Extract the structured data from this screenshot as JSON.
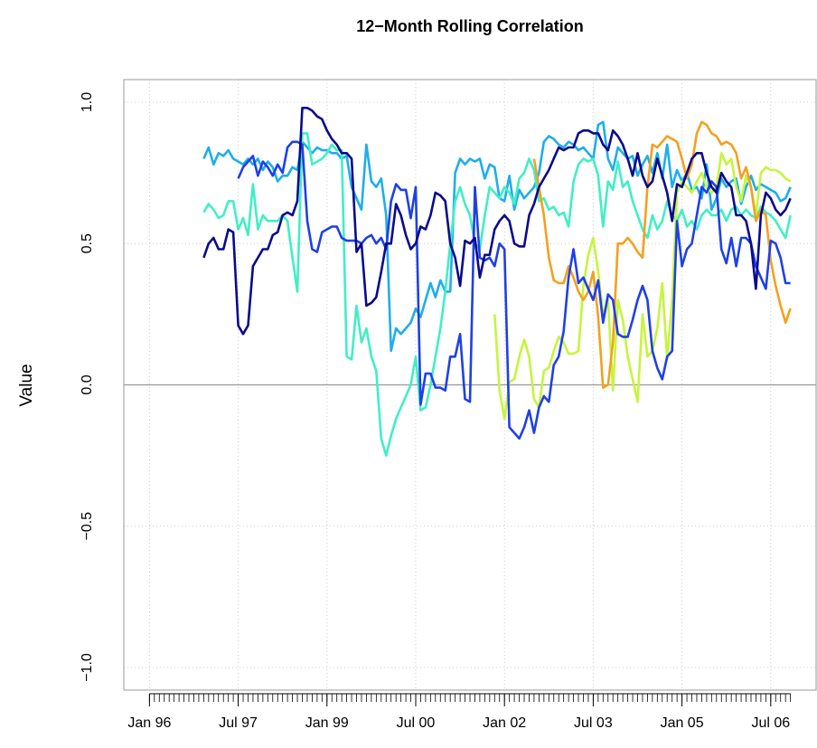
{
  "chart_data": {
    "type": "line",
    "title": "12−Month Rolling Correlation",
    "y_label": "Value",
    "x": [
      "Jan 96",
      "Feb 96",
      "Mar 96",
      "Apr 96",
      "May 96",
      "Jun 96",
      "Jul 96",
      "Aug 96",
      "Sep 96",
      "Oct 96",
      "Nov 96",
      "Dec 96",
      "Jan 97",
      "Feb 97",
      "Mar 97",
      "Apr 97",
      "May 97",
      "Jun 97",
      "Jul 97",
      "Aug 97",
      "Sep 97",
      "Oct 97",
      "Nov 97",
      "Dec 97",
      "Jan 98",
      "Feb 98",
      "Mar 98",
      "Apr 98",
      "May 98",
      "Jun 98",
      "Jul 98",
      "Aug 98",
      "Sep 98",
      "Oct 98",
      "Nov 98",
      "Dec 98",
      "Jan 99",
      "Feb 99",
      "Mar 99",
      "Apr 99",
      "May 99",
      "Jun 99",
      "Jul 99",
      "Aug 99",
      "Sep 99",
      "Oct 99",
      "Nov 99",
      "Dec 99",
      "Jan 00",
      "Feb 00",
      "Mar 00",
      "Apr 00",
      "May 00",
      "Jun 00",
      "Jul 00",
      "Aug 00",
      "Sep 00",
      "Oct 00",
      "Nov 00",
      "Dec 00",
      "Jan 01",
      "Feb 01",
      "Mar 01",
      "Apr 01",
      "May 01",
      "Jun 01",
      "Jul 01",
      "Aug 01",
      "Sep 01",
      "Oct 01",
      "Nov 01",
      "Dec 01",
      "Jan 02",
      "Feb 02",
      "Mar 02",
      "Apr 02",
      "May 02",
      "Jun 02",
      "Jul 02",
      "Aug 02",
      "Sep 02",
      "Oct 02",
      "Nov 02",
      "Dec 02",
      "Jan 03",
      "Feb 03",
      "Mar 03",
      "Apr 03",
      "May 03",
      "Jun 03",
      "Jul 03",
      "Aug 03",
      "Sep 03",
      "Oct 03",
      "Nov 03",
      "Dec 03",
      "Jan 04",
      "Feb 04",
      "Mar 04",
      "Apr 04",
      "May 04",
      "Jun 04",
      "Jul 04",
      "Aug 04",
      "Sep 04",
      "Oct 04",
      "Nov 04",
      "Dec 04",
      "Jan 05",
      "Feb 05",
      "Mar 05",
      "Apr 05",
      "May 05",
      "Jun 05",
      "Jul 05",
      "Aug 05",
      "Sep 05",
      "Oct 05",
      "Nov 05",
      "Dec 05",
      "Jan 06",
      "Feb 06",
      "Mar 06",
      "Apr 06",
      "May 06",
      "Jun 06",
      "Jul 06",
      "Aug 06",
      "Sep 06",
      "Oct 06",
      "Nov 06"
    ],
    "xticks": [
      "Jan 96",
      "Jul 97",
      "Jan 99",
      "Jul 00",
      "Jan 02",
      "Jul 03",
      "Jan 05",
      "Jul 06"
    ],
    "ylim": [
      -1.08,
      1.08
    ],
    "yticks": [
      {
        "value": -1,
        "label": "−1.0"
      },
      {
        "value": -0.5,
        "label": "−0.5"
      },
      {
        "value": 0,
        "label": "0.0"
      },
      {
        "value": 0.5,
        "label": "0.5"
      },
      {
        "value": 1,
        "label": "1.0"
      }
    ],
    "hline": 0,
    "grid": true,
    "series": [
      {
        "color": "#1eaeeb",
        "values": [
          null,
          null,
          null,
          null,
          null,
          null,
          null,
          null,
          null,
          null,
          null,
          0.8,
          0.84,
          0.78,
          0.82,
          0.81,
          0.83,
          0.8,
          0.79,
          0.78,
          0.8,
          0.78,
          0.8,
          0.76,
          0.79,
          0.77,
          0.72,
          0.74,
          0.74,
          0.77,
          0.76,
          0.86,
          0.84,
          0.82,
          0.84,
          0.83,
          0.83,
          0.82,
          0.82,
          0.8,
          0.81,
          0.7,
          0.66,
          0.62,
          0.85,
          0.72,
          0.7,
          0.73,
          0.6,
          0.12,
          0.2,
          0.18,
          0.2,
          0.22,
          0.27,
          0.24,
          0.3,
          0.36,
          0.31,
          0.37,
          0.33,
          0.33,
          0.75,
          0.8,
          0.78,
          0.8,
          0.79,
          0.8,
          0.73,
          0.78,
          0.77,
          0.66,
          0.65,
          0.74,
          0.62,
          0.69,
          0.66,
          0.68,
          0.7,
          0.75,
          0.86,
          0.88,
          0.87,
          0.85,
          0.84,
          0.86,
          0.85,
          0.83,
          0.84,
          0.82,
          0.8,
          0.92,
          0.93,
          0.8,
          0.76,
          0.84,
          0.82,
          0.8,
          0.81,
          0.74,
          0.78,
          0.81,
          0.75,
          0.82,
          0.73,
          0.85,
          0.7,
          0.76,
          0.72,
          0.75,
          0.69,
          0.7,
          0.66,
          0.78,
          0.62,
          0.66,
          0.73,
          0.7,
          0.72,
          0.73,
          0.64,
          0.7,
          0.74,
          0.69,
          0.71,
          0.7,
          0.69,
          0.68,
          0.65,
          0.66,
          0.7
        ]
      },
      {
        "color": "#40efc4",
        "values": [
          null,
          null,
          null,
          null,
          null,
          null,
          null,
          null,
          null,
          null,
          null,
          0.61,
          0.64,
          0.62,
          0.59,
          0.6,
          0.65,
          0.65,
          0.55,
          0.59,
          0.53,
          0.71,
          0.55,
          0.6,
          0.58,
          0.58,
          0.58,
          0.6,
          0.58,
          0.45,
          0.33,
          0.89,
          0.89,
          0.78,
          0.79,
          0.8,
          0.82,
          0.85,
          0.83,
          0.83,
          0.1,
          0.09,
          0.28,
          0.15,
          0.2,
          0.1,
          0.05,
          -0.19,
          -0.25,
          -0.18,
          -0.12,
          -0.08,
          -0.04,
          0.0,
          0.1,
          -0.09,
          -0.08,
          0.0,
          0.1,
          0.2,
          0.33,
          0.5,
          0.65,
          0.7,
          0.64,
          0.6,
          0.5,
          0.48,
          0.6,
          0.7,
          0.68,
          0.66,
          0.7,
          0.68,
          0.64,
          0.73,
          0.75,
          0.8,
          0.76,
          0.65,
          0.66,
          0.62,
          0.63,
          0.6,
          0.61,
          0.56,
          0.72,
          0.78,
          0.8,
          0.79,
          0.8,
          0.74,
          0.56,
          0.72,
          0.69,
          0.79,
          0.7,
          0.72,
          0.65,
          0.6,
          0.55,
          0.52,
          0.6,
          0.55,
          0.58,
          0.65,
          0.6,
          0.58,
          0.62,
          0.56,
          0.58,
          0.55,
          0.6,
          0.62,
          0.6,
          0.6,
          0.62,
          0.58,
          0.62,
          0.63,
          0.6,
          0.62,
          0.6,
          0.59,
          0.63,
          0.61,
          0.6,
          0.58,
          0.55,
          0.52,
          0.6
        ]
      },
      {
        "color": "#c6f53c",
        "values": [
          null,
          null,
          null,
          null,
          null,
          null,
          null,
          null,
          null,
          null,
          null,
          null,
          null,
          null,
          null,
          null,
          null,
          null,
          null,
          null,
          null,
          null,
          null,
          null,
          null,
          null,
          null,
          null,
          null,
          null,
          null,
          null,
          null,
          null,
          null,
          null,
          null,
          null,
          null,
          null,
          null,
          null,
          null,
          null,
          null,
          null,
          null,
          null,
          null,
          null,
          null,
          null,
          null,
          null,
          null,
          null,
          null,
          null,
          null,
          null,
          null,
          null,
          null,
          null,
          null,
          null,
          null,
          null,
          null,
          null,
          0.25,
          -0.02,
          -0.12,
          0.01,
          0.02,
          0.1,
          0.16,
          0.1,
          -0.05,
          -0.08,
          0.05,
          0.06,
          0.12,
          0.17,
          0.15,
          0.11,
          0.11,
          0.12,
          0.35,
          0.46,
          0.52,
          0.4,
          0.25,
          0.3,
          -0.02,
          0.3,
          0.23,
          0.1,
          0.02,
          -0.06,
          0.25,
          0.1,
          0.12,
          0.2,
          0.36,
          0.09,
          0.3,
          0.68,
          0.72,
          0.7,
          0.68,
          0.72,
          0.75,
          0.7,
          0.68,
          0.7,
          0.82,
          0.78,
          0.8,
          0.7,
          0.65,
          0.74,
          0.7,
          0.6,
          0.75,
          0.77,
          0.76,
          0.76,
          0.75,
          0.73,
          0.72
        ]
      },
      {
        "color": "#f5a01e",
        "values": [
          null,
          null,
          null,
          null,
          null,
          null,
          null,
          null,
          null,
          null,
          null,
          null,
          null,
          null,
          null,
          null,
          null,
          null,
          null,
          null,
          null,
          null,
          null,
          null,
          null,
          null,
          null,
          null,
          null,
          null,
          null,
          null,
          null,
          null,
          null,
          null,
          null,
          null,
          null,
          null,
          null,
          null,
          null,
          null,
          null,
          null,
          null,
          null,
          null,
          null,
          null,
          null,
          null,
          null,
          null,
          null,
          null,
          null,
          null,
          null,
          null,
          null,
          null,
          null,
          null,
          null,
          null,
          null,
          null,
          null,
          null,
          null,
          null,
          null,
          null,
          null,
          null,
          null,
          0.8,
          0.7,
          0.6,
          0.45,
          0.37,
          0.36,
          0.36,
          0.42,
          0.38,
          0.33,
          0.3,
          0.33,
          0.4,
          0.24,
          -0.01,
          0.0,
          0.15,
          0.5,
          0.5,
          0.52,
          0.5,
          0.47,
          0.45,
          0.7,
          0.85,
          0.84,
          0.86,
          0.88,
          0.87,
          0.86,
          0.8,
          0.73,
          0.78,
          0.89,
          0.93,
          0.92,
          0.89,
          0.88,
          0.85,
          0.86,
          0.85,
          0.82,
          0.73,
          0.77,
          0.7,
          0.58,
          0.62,
          0.6,
          0.44,
          0.35,
          0.28,
          0.22,
          0.27
        ]
      },
      {
        "color": "#1e40e6",
        "values": [
          null,
          null,
          null,
          null,
          null,
          null,
          null,
          null,
          null,
          null,
          null,
          null,
          null,
          null,
          null,
          null,
          null,
          null,
          0.73,
          0.77,
          0.79,
          0.81,
          0.74,
          0.79,
          0.77,
          0.74,
          0.78,
          0.75,
          0.84,
          0.86,
          0.86,
          0.85,
          0.58,
          0.48,
          0.47,
          0.54,
          0.55,
          0.56,
          0.56,
          0.52,
          0.51,
          0.51,
          0.51,
          0.5,
          0.52,
          0.53,
          0.5,
          0.52,
          0.48,
          0.65,
          0.71,
          0.69,
          0.69,
          0.59,
          0.7,
          -0.07,
          0.04,
          0.04,
          -0.01,
          -0.01,
          -0.02,
          0.1,
          0.1,
          0.18,
          -0.05,
          -0.06,
          0.7,
          0.45,
          0.44,
          0.45,
          0.42,
          0.5,
          0.48,
          -0.15,
          -0.17,
          -0.19,
          -0.15,
          -0.09,
          -0.17,
          -0.08,
          -0.04,
          -0.06,
          0.07,
          0.1,
          0.19,
          0.38,
          0.48,
          0.36,
          0.38,
          0.34,
          0.3,
          0.37,
          0.22,
          0.32,
          0.3,
          0.18,
          0.17,
          0.17,
          0.23,
          0.3,
          0.35,
          0.3,
          0.12,
          0.06,
          0.02,
          0.1,
          0.12,
          0.58,
          0.42,
          0.48,
          0.5,
          0.6,
          0.7,
          0.68,
          0.72,
          0.7,
          0.48,
          0.43,
          0.52,
          0.42,
          0.52,
          0.52,
          0.5,
          0.42,
          0.38,
          0.34,
          0.51,
          0.5,
          0.45,
          0.36,
          0.36
        ]
      },
      {
        "color": "#0a0a8c",
        "values": [
          null,
          null,
          null,
          null,
          null,
          null,
          null,
          null,
          null,
          null,
          null,
          0.45,
          0.5,
          0.52,
          0.48,
          0.48,
          0.55,
          0.54,
          0.21,
          0.18,
          0.21,
          0.42,
          0.45,
          0.48,
          0.48,
          0.53,
          0.54,
          0.6,
          0.61,
          0.6,
          0.65,
          0.98,
          0.98,
          0.97,
          0.95,
          0.94,
          0.9,
          0.87,
          0.85,
          0.82,
          0.82,
          0.8,
          0.47,
          0.5,
          0.28,
          0.29,
          0.31,
          0.4,
          0.5,
          0.5,
          0.64,
          0.6,
          0.53,
          0.48,
          0.5,
          0.56,
          0.55,
          0.6,
          0.68,
          0.67,
          0.65,
          0.5,
          0.45,
          0.35,
          0.51,
          0.5,
          0.52,
          0.38,
          0.46,
          0.46,
          0.55,
          0.58,
          0.6,
          0.58,
          0.5,
          0.49,
          0.49,
          0.6,
          0.64,
          0.7,
          0.73,
          0.76,
          0.8,
          0.84,
          0.83,
          0.84,
          0.84,
          0.89,
          0.9,
          0.9,
          0.89,
          0.89,
          0.85,
          0.83,
          0.9,
          0.88,
          0.85,
          0.8,
          0.74,
          0.82,
          0.74,
          0.7,
          0.72,
          0.8,
          0.74,
          0.68,
          0.58,
          0.71,
          0.7,
          0.75,
          0.8,
          0.82,
          0.82,
          0.75,
          0.7,
          0.68,
          0.75,
          0.72,
          0.7,
          0.6,
          0.6,
          0.58,
          0.5,
          0.34,
          0.6,
          0.68,
          0.66,
          0.62,
          0.6,
          0.62,
          0.66
        ]
      }
    ]
  }
}
